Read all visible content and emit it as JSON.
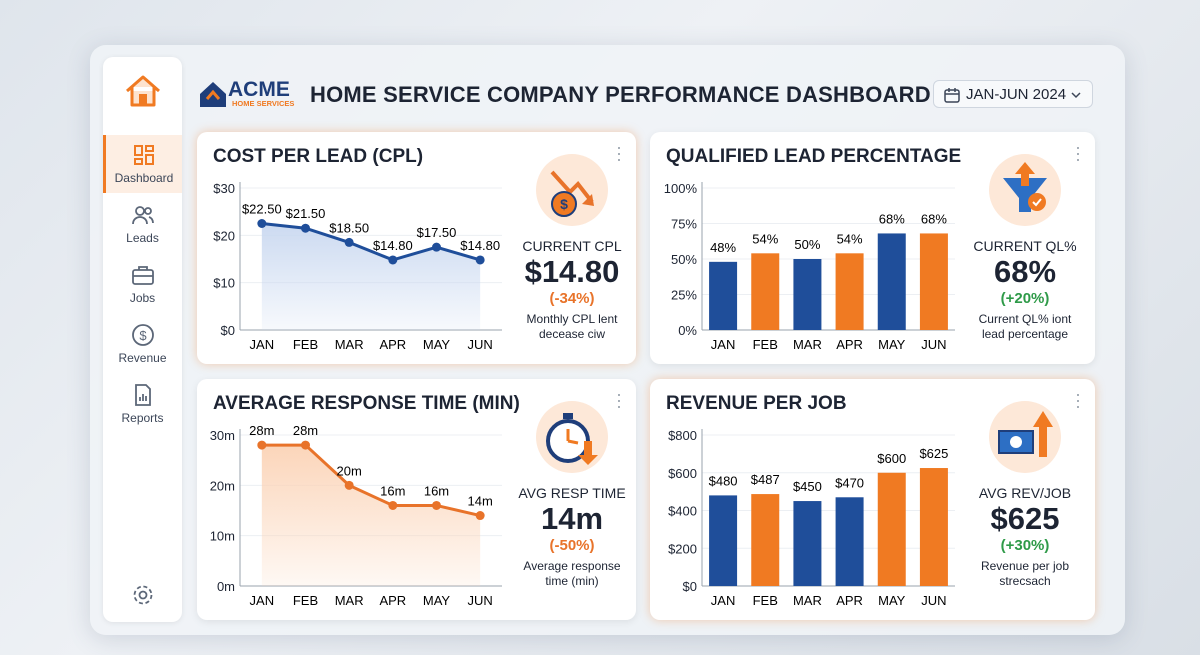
{
  "header": {
    "brand": "ACME",
    "brand_sub": "HOME SERVICES",
    "title": "HOME SERVICE COMPANY PERFORMANCE DASHBOARD",
    "date_range": "JAN-JUN 2024"
  },
  "sidebar": {
    "items": [
      "Dashboard",
      "Leads",
      "Jobs",
      "Revenue",
      "Reports"
    ]
  },
  "chart_data": [
    {
      "type": "line",
      "title": "COST PER LEAD (CPL)",
      "categories": [
        "JAN",
        "FEB",
        "MAR",
        "APR",
        "MAY",
        "JUN"
      ],
      "values": [
        22.5,
        21.5,
        18.5,
        14.8,
        17.5,
        14.8
      ],
      "value_labels": [
        "$22.50",
        "$21.50",
        "$18.50",
        "$14.80",
        "$17.50",
        "$14.80"
      ],
      "color": "#1f4e9a",
      "area_color": "#c9d8f0",
      "ylim": [
        0,
        30
      ],
      "yticks": [
        {
          "value": 0,
          "label": "$0"
        },
        {
          "value": 10,
          "label": "$10"
        },
        {
          "value": 20,
          "label": "$20"
        },
        {
          "value": 30,
          "label": "$30"
        }
      ],
      "grid": true,
      "kpi_label": "CURRENT CPL",
      "kpi_value": "$14.80",
      "kpi_change": "(-34%)",
      "kpi_change_color": "#e8732a",
      "kpi_note": [
        "Monthly CPL lent",
        "decease ciw"
      ]
    },
    {
      "type": "bar",
      "title": "QUALIFIED LEAD PERCENTAGE",
      "categories": [
        "JAN",
        "FEB",
        "MAR",
        "APR",
        "MAY",
        "JUN"
      ],
      "values": [
        48,
        54,
        50,
        54,
        68,
        68
      ],
      "value_labels": [
        "48%",
        "54%",
        "50%",
        "54%",
        "68%",
        "68%"
      ],
      "colors": [
        "#1f4e9a",
        "#f07a22",
        "#1f4e9a",
        "#f07a22",
        "#1f4e9a",
        "#f07a22"
      ],
      "ylim": [
        0,
        100
      ],
      "yticks": [
        {
          "value": 0,
          "label": "0%"
        },
        {
          "value": 25,
          "label": "25%"
        },
        {
          "value": 50,
          "label": "50%"
        },
        {
          "value": 75,
          "label": "75%"
        },
        {
          "value": 100,
          "label": "100%"
        }
      ],
      "grid": true,
      "kpi_label": "CURRENT QL%",
      "kpi_value": "68%",
      "kpi_change": "(+20%)",
      "kpi_change_color": "#2e9a48",
      "kpi_note": [
        "Current QL% iont",
        "lead percentage"
      ]
    },
    {
      "type": "line",
      "title": "AVERAGE RESPONSE TIME (MIN)",
      "categories": [
        "JAN",
        "FEB",
        "MAR",
        "APR",
        "MAY",
        "JUN"
      ],
      "values": [
        28,
        28,
        20,
        16,
        16,
        14
      ],
      "value_labels": [
        "28m",
        "28m",
        "20m",
        "16m",
        "16m",
        "14m"
      ],
      "color": "#e8732a",
      "area_color": "#fbd3b6",
      "ylim": [
        0,
        30
      ],
      "yticks": [
        {
          "value": 0,
          "label": "0m"
        },
        {
          "value": 10,
          "label": "10m"
        },
        {
          "value": 20,
          "label": "20m"
        },
        {
          "value": 30,
          "label": "30m"
        }
      ],
      "grid": true,
      "kpi_label": "AVG RESP TIME",
      "kpi_value": "14m",
      "kpi_change": "(-50%)",
      "kpi_change_color": "#e8732a",
      "kpi_note": [
        "Average response",
        "time (min)"
      ]
    },
    {
      "type": "bar",
      "title": "REVENUE PER JOB",
      "categories": [
        "JAN",
        "FEB",
        "MAR",
        "APR",
        "MAY",
        "JUN"
      ],
      "values": [
        480,
        487,
        450,
        470,
        600,
        625
      ],
      "value_labels": [
        "$480",
        "$487",
        "$450",
        "$470",
        "$600",
        "$625"
      ],
      "colors": [
        "#1f4e9a",
        "#f07a22",
        "#1f4e9a",
        "#1f4e9a",
        "#f07a22",
        "#f07a22"
      ],
      "ylim": [
        0,
        800
      ],
      "yticks": [
        {
          "value": 0,
          "label": "$0"
        },
        {
          "value": 200,
          "label": "$200"
        },
        {
          "value": 400,
          "label": "$400"
        },
        {
          "value": 600,
          "label": "$600"
        },
        {
          "value": 800,
          "label": "$800"
        }
      ],
      "grid": true,
      "kpi_label": "AVG REV/JOB",
      "kpi_value": "$625",
      "kpi_change": "(+30%)",
      "kpi_change_color": "#2e9a48",
      "kpi_note": [
        "Revenue per job",
        "strecsach"
      ]
    }
  ]
}
